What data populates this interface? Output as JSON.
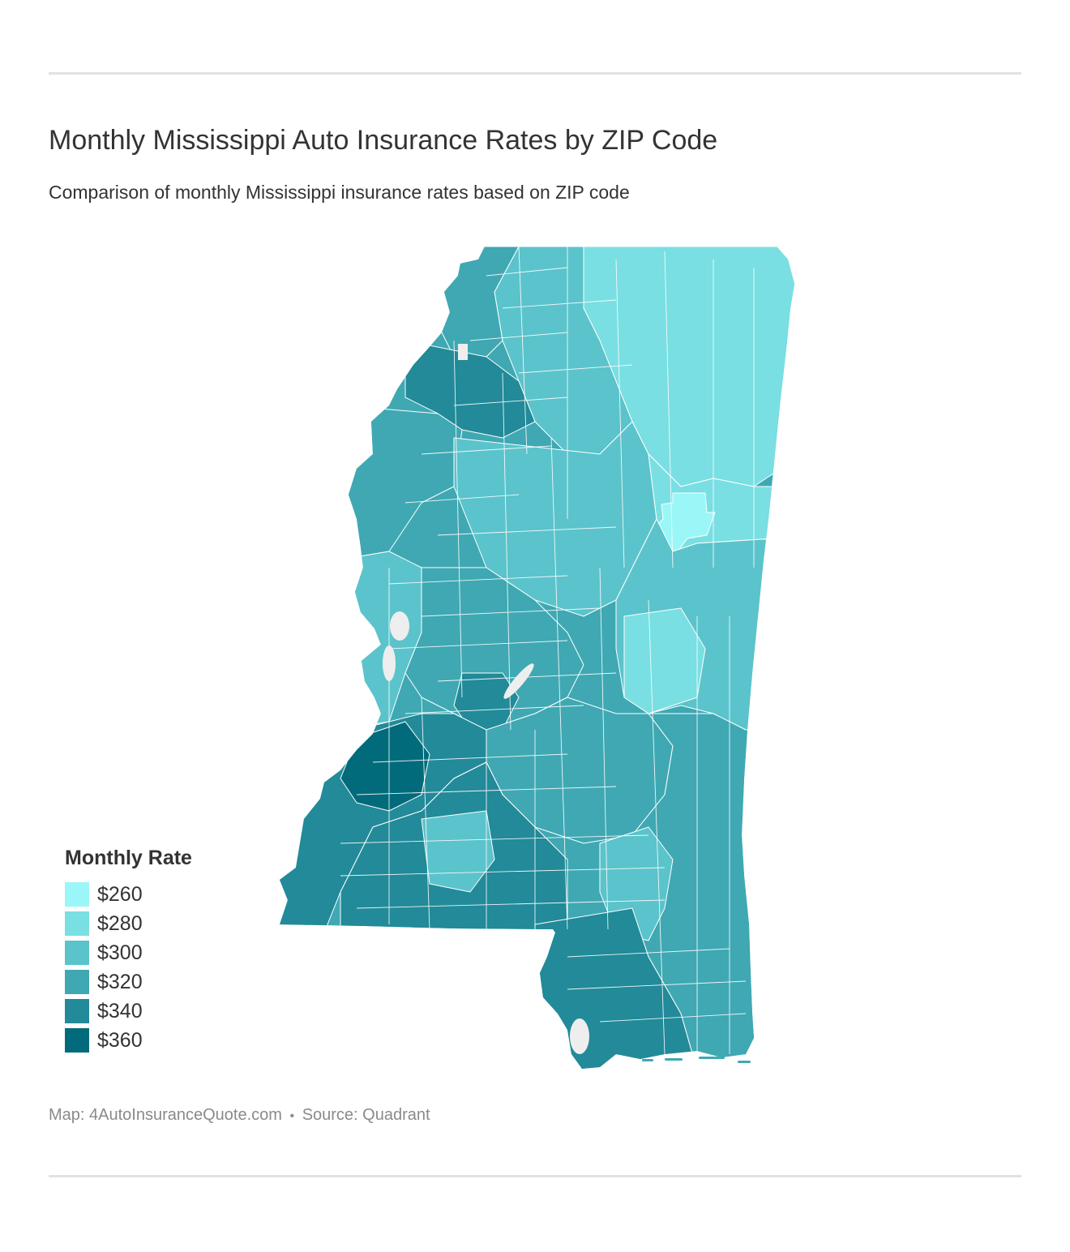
{
  "header": {
    "title": "Monthly Mississippi Auto Insurance Rates by ZIP Code",
    "subtitle": "Comparison of monthly Mississippi insurance rates based on ZIP code"
  },
  "legend": {
    "title": "Monthly Rate",
    "items": [
      {
        "label": "$260",
        "color": "#9af6f7"
      },
      {
        "label": "$280",
        "color": "#79dfe2"
      },
      {
        "label": "$300",
        "color": "#5bc3cb"
      },
      {
        "label": "$320",
        "color": "#3fa8b3"
      },
      {
        "label": "$340",
        "color": "#228a98"
      },
      {
        "label": "$360",
        "color": "#026b7b"
      }
    ]
  },
  "footer": {
    "map_credit": "Map: 4AutoInsuranceQuote.com",
    "separator": "•",
    "source": "Source: Quadrant"
  },
  "map": {
    "region": "Mississippi",
    "background_color": "#ffffff",
    "border_color": "#ffffff",
    "water_color": "#eeeeee"
  }
}
